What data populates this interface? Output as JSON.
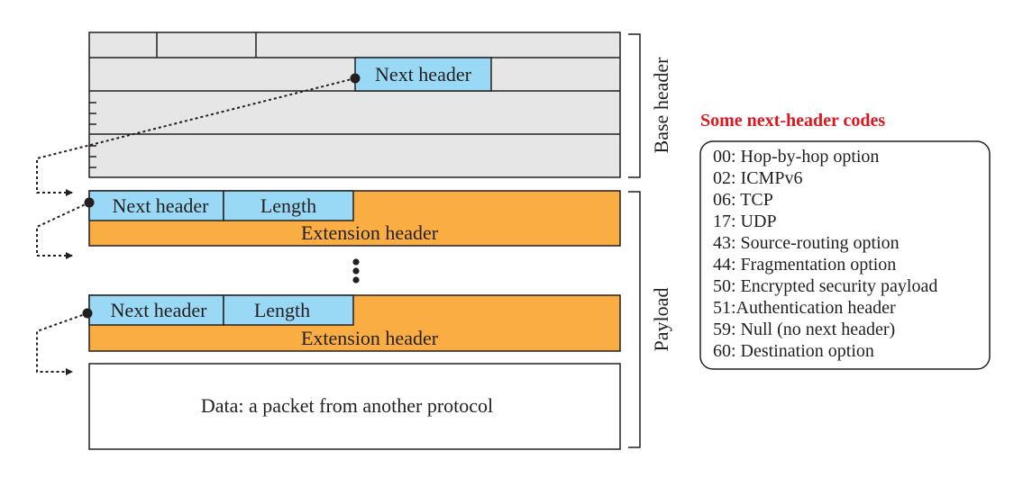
{
  "colors": {
    "base_fill": "#e6e6e6",
    "field_fill": "#99d9f5",
    "extension_fill": "#f9ad42",
    "data_fill": "#ffffff",
    "stroke": "#231f20",
    "legend_title": "#e0161d"
  },
  "base_header": {
    "next_header_label": "Next header",
    "brace_label": "Base header"
  },
  "extension_headers": [
    {
      "next_header_label": "Next header",
      "length_label": "Length",
      "body_label": "Extension header"
    },
    {
      "next_header_label": "Next header",
      "length_label": "Length",
      "body_label": "Extension header"
    }
  ],
  "data_block": {
    "label": "Data: a packet from another protocol"
  },
  "payload_brace_label": "Payload",
  "legend": {
    "title": "Some next-header codes",
    "codes": [
      "00: Hop-by-hop option",
      "02: ICMPv6",
      "06: TCP",
      "17: UDP",
      "43: Source-routing option",
      "44: Fragmentation option",
      "50: Encrypted security payload",
      "51:Authentication header",
      "59: Null (no next header)",
      "60: Destination option"
    ]
  }
}
